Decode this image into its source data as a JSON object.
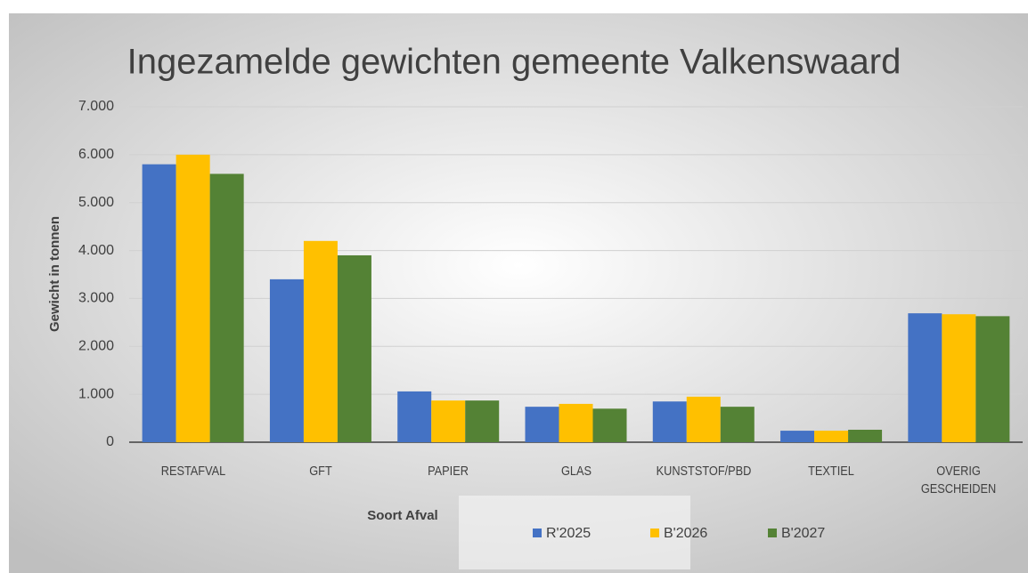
{
  "chart_data": {
    "type": "bar",
    "title": "Ingezamelde gewichten gemeente Valkenswaard",
    "x_label": "Soort Afval",
    "y_label": "Gewicht in tonnen",
    "categories": [
      "RESTAFVAL",
      "GFT",
      "PAPIER",
      "GLAS",
      "KUNSTSTOF/PBD",
      "TEXTIEL",
      "OVERIG GESCHEIDEN"
    ],
    "series": [
      {
        "name": "R'2025",
        "color": "#4472c4",
        "values": [
          5800,
          3400,
          1060,
          740,
          850,
          240,
          2690
        ]
      },
      {
        "name": "B'2026",
        "color": "#ffc000",
        "values": [
          6000,
          4200,
          870,
          800,
          950,
          240,
          2670
        ]
      },
      {
        "name": "B'2027",
        "color": "#548235",
        "values": [
          5600,
          3900,
          870,
          700,
          740,
          260,
          2630
        ]
      }
    ],
    "ylim": [
      0,
      7000
    ],
    "yticks": [
      0,
      {
        "value": 1000,
        "label": "1.000"
      },
      {
        "value": 2000,
        "label": "2.000"
      },
      {
        "value": 3000,
        "label": "3.000"
      },
      {
        "value": 4000,
        "label": "4.000"
      },
      {
        "value": 5000,
        "label": "5.000"
      },
      {
        "value": 6000,
        "label": "6.000"
      },
      {
        "value": 7000,
        "label": "7.000"
      }
    ],
    "grid": true,
    "legend": "bottom"
  }
}
